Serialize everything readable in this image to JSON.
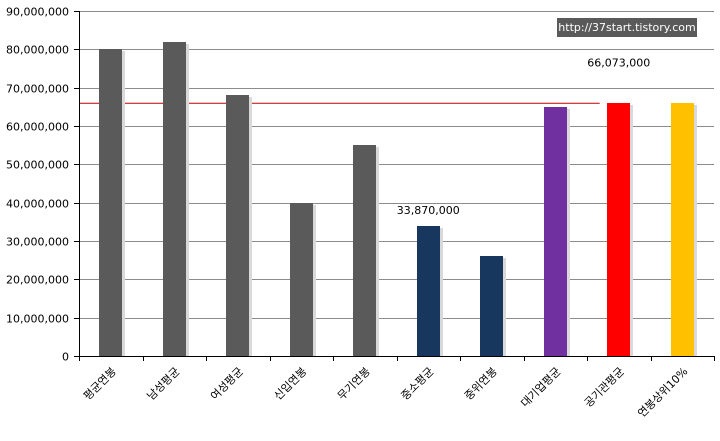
{
  "chart_data": {
    "type": "bar",
    "categories": [
      "평균연봉",
      "남성평균",
      "여성평균",
      "신입연봉",
      "무기연봉",
      "중소평균",
      "중위연봉",
      "대기업평균",
      "공기관평균",
      "연봉상위10%"
    ],
    "values": [
      80000000,
      82000000,
      68000000,
      40000000,
      55000000,
      33870000,
      26000000,
      65000000,
      66073000,
      66073000
    ],
    "colors": [
      "#5a5a5a",
      "#5a5a5a",
      "#5a5a5a",
      "#5a5a5a",
      "#5a5a5a",
      "#17375e",
      "#17375e",
      "#7030a0",
      "#ff0000",
      "#ffc000"
    ],
    "ylim": [
      0,
      90000000
    ],
    "yticks": [
      0,
      10000000,
      20000000,
      30000000,
      40000000,
      50000000,
      60000000,
      70000000,
      80000000,
      90000000
    ],
    "ytick_labels": [
      "0",
      "10,000,000",
      "20,000,000",
      "30,000,000",
      "40,000,000",
      "50,000,000",
      "60,000,000",
      "70,000,000",
      "80,000,000",
      "90,000,000"
    ],
    "grid": true,
    "reference_line": {
      "value": 66073000,
      "color": "#c00000"
    },
    "annotations": [
      {
        "category_index": 5,
        "text": "33,870,000"
      },
      {
        "category_index": 8,
        "text": "66,073,000"
      }
    ],
    "title": "",
    "xlabel": "",
    "ylabel": ""
  },
  "watermark": "http://37start.tistory.com"
}
